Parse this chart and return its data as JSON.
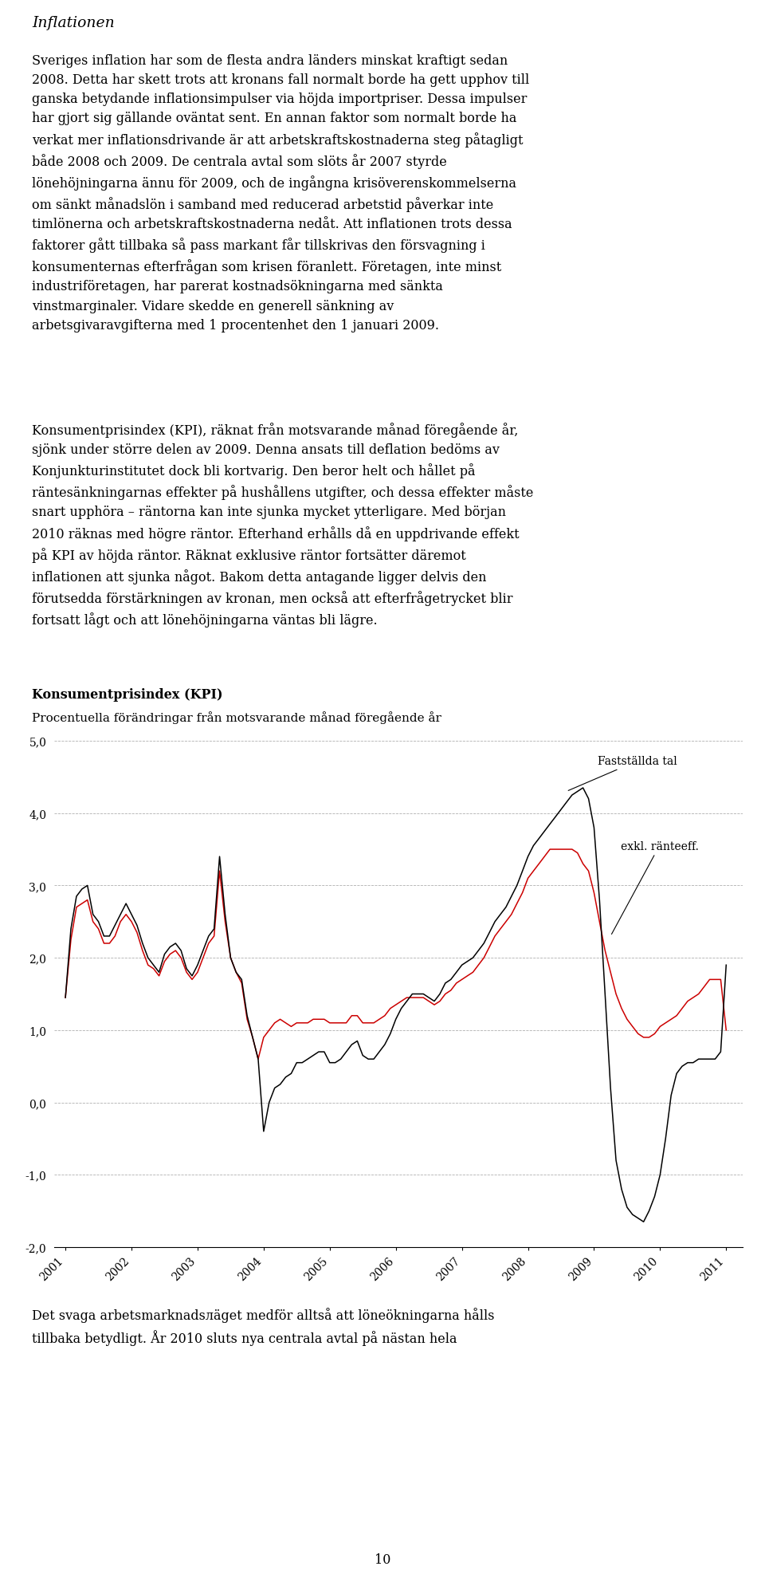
{
  "title_italic": "Inflationen",
  "para1": "Sveriges inflation har som de flesta andra länders minskat kraftigt sedan\n2008. Detta har skett trots att kronans fall normalt borde ha gett upphov till\nganska betydande inflationsimpulser via höjda importpriser. Dessa impulser\nhar gjort sig gällande oväntat sent. En annan faktor som normalt borde ha\nverkat mer inflationsdrivande är att arbetskraftskostnaderna steg påtagligt\nbåde 2008 och 2009. De centrala avtal som slöts år 2007 styrde\nlönehöjningarna ännu för 2009, och de ingångna krisöverenskommelserna\nom sänkt månadslön i samband med reducerad arbetstid påverkar inte\ntimlönerna och arbetskraftskostnaderna nedåt. Att inflationen trots dessa\nfaktorer gått tillbaka så pass markant får tillskrivas den försvagning i\nkonsumenternas efterfrågan som krisen föranlett. Företagen, inte minst\nindustriföretagen, har parerat kostnadsökningarna med sänkta\nvinstmarginaler. Vidare skedde en generell sänkning av\narbetsgivaravgifterna med 1 procentenhet den 1 januari 2009.",
  "para2": "Konsumentprisindex (KPI), räknat från motsvarande månad föregående år,\nsjönk under större delen av 2009. Denna ansats till deflation bedöms av\nKonjunkturinstitutet dock bli kortvarig. Den beror helt och hållet på\nräntesänkningarnas effekter på hushållens utgifter, och dessa effekter måste\nsnart upphöra – räntorna kan inte sjunka mycket ytterligare. Med början\n2010 räknas med högre räntor. Efterhand erhålls då en uppdrivande effekt\npå KPI av höjda räntor. Räknat exklusive räntor fortsätter däremot\ninflationen att sjunka något. Bakom detta antagande ligger delvis den\nförutsedda förstärkningen av kronan, men också att efterfrågetrycket blir\nfortsatt lågt och att lönehöjningarna väntas bli lägre.",
  "chart_title_bold": "Konsumentprisindex (KPI)",
  "chart_subtitle": "Procentuella förändringar från motsvarande månad föregående år",
  "para3": "Det svaga arbetsmarknadsлäget medför alltså att löneökningarna hålls\ntillbaka betydligt. År 2010 sluts nya centrala avtal på nästan hela",
  "page_number": "10",
  "ylim": [
    -2.0,
    5.0
  ],
  "yticks": [
    -2.0,
    -1.0,
    0.0,
    1.0,
    2.0,
    3.0,
    4.0,
    5.0
  ],
  "yticklabels": [
    "-2,0",
    "-1,0",
    "0,0",
    "1,0",
    "2,0",
    "3,0",
    "4,0",
    "5,0"
  ],
  "legend_label_black": "Fastställda tal",
  "legend_label_red": "exkl. ränteeff.",
  "black_line_color": "#000000",
  "red_line_color": "#cc0000",
  "grid_color": "#b0b0b0",
  "background_color": "#ffffff",
  "black_x": [
    2001.0,
    2001.083,
    2001.167,
    2001.25,
    2001.333,
    2001.417,
    2001.5,
    2001.583,
    2001.667,
    2001.75,
    2001.833,
    2001.917,
    2002.0,
    2002.083,
    2002.167,
    2002.25,
    2002.333,
    2002.417,
    2002.5,
    2002.583,
    2002.667,
    2002.75,
    2002.833,
    2002.917,
    2003.0,
    2003.083,
    2003.167,
    2003.25,
    2003.333,
    2003.417,
    2003.5,
    2003.583,
    2003.667,
    2003.75,
    2003.833,
    2003.917,
    2004.0,
    2004.083,
    2004.167,
    2004.25,
    2004.333,
    2004.417,
    2004.5,
    2004.583,
    2004.667,
    2004.75,
    2004.833,
    2004.917,
    2005.0,
    2005.083,
    2005.167,
    2005.25,
    2005.333,
    2005.417,
    2005.5,
    2005.583,
    2005.667,
    2005.75,
    2005.833,
    2005.917,
    2006.0,
    2006.083,
    2006.167,
    2006.25,
    2006.333,
    2006.417,
    2006.5,
    2006.583,
    2006.667,
    2006.75,
    2006.833,
    2006.917,
    2007.0,
    2007.083,
    2007.167,
    2007.25,
    2007.333,
    2007.417,
    2007.5,
    2007.583,
    2007.667,
    2007.75,
    2007.833,
    2007.917,
    2008.0,
    2008.083,
    2008.167,
    2008.25,
    2008.333,
    2008.417,
    2008.5,
    2008.583,
    2008.667,
    2008.75,
    2008.833,
    2008.917,
    2009.0,
    2009.083,
    2009.167,
    2009.25,
    2009.333,
    2009.417,
    2009.5,
    2009.583,
    2009.667,
    2009.75,
    2009.833,
    2009.917,
    2010.0,
    2010.083,
    2010.167,
    2010.25,
    2010.333,
    2010.417,
    2010.5,
    2010.583,
    2010.667,
    2010.75,
    2010.833,
    2010.917,
    2011.0
  ],
  "black_y": [
    1.45,
    2.4,
    2.85,
    2.95,
    3.0,
    2.6,
    2.5,
    2.3,
    2.3,
    2.45,
    2.6,
    2.75,
    2.6,
    2.45,
    2.2,
    2.0,
    1.9,
    1.8,
    2.05,
    2.15,
    2.2,
    2.1,
    1.85,
    1.75,
    1.9,
    2.1,
    2.3,
    2.4,
    3.4,
    2.6,
    2.0,
    1.8,
    1.7,
    1.2,
    0.9,
    0.6,
    -0.4,
    0.0,
    0.2,
    0.25,
    0.35,
    0.4,
    0.55,
    0.55,
    0.6,
    0.65,
    0.7,
    0.7,
    0.55,
    0.55,
    0.6,
    0.7,
    0.8,
    0.85,
    0.65,
    0.6,
    0.6,
    0.7,
    0.8,
    0.95,
    1.15,
    1.3,
    1.4,
    1.5,
    1.5,
    1.5,
    1.45,
    1.4,
    1.5,
    1.65,
    1.7,
    1.8,
    1.9,
    1.95,
    2.0,
    2.1,
    2.2,
    2.35,
    2.5,
    2.6,
    2.7,
    2.85,
    3.0,
    3.2,
    3.4,
    3.55,
    3.65,
    3.75,
    3.85,
    3.95,
    4.05,
    4.15,
    4.25,
    4.3,
    4.35,
    4.2,
    3.8,
    2.8,
    1.5,
    0.2,
    -0.8,
    -1.2,
    -1.45,
    -1.55,
    -1.6,
    -1.65,
    -1.5,
    -1.3,
    -1.0,
    -0.5,
    0.1,
    0.4,
    0.5,
    0.55,
    0.55,
    0.6,
    0.6,
    0.6,
    0.6,
    0.7,
    1.9
  ],
  "red_x": [
    2001.0,
    2001.083,
    2001.167,
    2001.25,
    2001.333,
    2001.417,
    2001.5,
    2001.583,
    2001.667,
    2001.75,
    2001.833,
    2001.917,
    2002.0,
    2002.083,
    2002.167,
    2002.25,
    2002.333,
    2002.417,
    2002.5,
    2002.583,
    2002.667,
    2002.75,
    2002.833,
    2002.917,
    2003.0,
    2003.083,
    2003.167,
    2003.25,
    2003.333,
    2003.417,
    2003.5,
    2003.583,
    2003.667,
    2003.75,
    2003.833,
    2003.917,
    2004.0,
    2004.083,
    2004.167,
    2004.25,
    2004.333,
    2004.417,
    2004.5,
    2004.583,
    2004.667,
    2004.75,
    2004.833,
    2004.917,
    2005.0,
    2005.083,
    2005.167,
    2005.25,
    2005.333,
    2005.417,
    2005.5,
    2005.583,
    2005.667,
    2005.75,
    2005.833,
    2005.917,
    2006.0,
    2006.083,
    2006.167,
    2006.25,
    2006.333,
    2006.417,
    2006.5,
    2006.583,
    2006.667,
    2006.75,
    2006.833,
    2006.917,
    2007.0,
    2007.083,
    2007.167,
    2007.25,
    2007.333,
    2007.417,
    2007.5,
    2007.583,
    2007.667,
    2007.75,
    2007.833,
    2007.917,
    2008.0,
    2008.083,
    2008.167,
    2008.25,
    2008.333,
    2008.417,
    2008.5,
    2008.583,
    2008.667,
    2008.75,
    2008.833,
    2008.917,
    2009.0,
    2009.083,
    2009.167,
    2009.25,
    2009.333,
    2009.417,
    2009.5,
    2009.583,
    2009.667,
    2009.75,
    2009.833,
    2009.917,
    2010.0,
    2010.083,
    2010.167,
    2010.25,
    2010.333,
    2010.417,
    2010.5,
    2010.583,
    2010.667,
    2010.75,
    2010.833,
    2010.917,
    2011.0
  ],
  "red_y": [
    1.45,
    2.25,
    2.7,
    2.75,
    2.8,
    2.5,
    2.4,
    2.2,
    2.2,
    2.3,
    2.5,
    2.6,
    2.5,
    2.35,
    2.1,
    1.9,
    1.85,
    1.75,
    1.95,
    2.05,
    2.1,
    2.0,
    1.8,
    1.7,
    1.8,
    2.0,
    2.2,
    2.3,
    3.2,
    2.5,
    2.0,
    1.8,
    1.65,
    1.15,
    0.9,
    0.6,
    0.9,
    1.0,
    1.1,
    1.15,
    1.1,
    1.05,
    1.1,
    1.1,
    1.1,
    1.15,
    1.15,
    1.15,
    1.1,
    1.1,
    1.1,
    1.1,
    1.2,
    1.2,
    1.1,
    1.1,
    1.1,
    1.15,
    1.2,
    1.3,
    1.35,
    1.4,
    1.45,
    1.45,
    1.45,
    1.45,
    1.4,
    1.35,
    1.4,
    1.5,
    1.55,
    1.65,
    1.7,
    1.75,
    1.8,
    1.9,
    2.0,
    2.15,
    2.3,
    2.4,
    2.5,
    2.6,
    2.75,
    2.9,
    3.1,
    3.2,
    3.3,
    3.4,
    3.5,
    3.5,
    3.5,
    3.5,
    3.5,
    3.45,
    3.3,
    3.2,
    2.9,
    2.5,
    2.1,
    1.8,
    1.5,
    1.3,
    1.15,
    1.05,
    0.95,
    0.9,
    0.9,
    0.95,
    1.05,
    1.1,
    1.15,
    1.2,
    1.3,
    1.4,
    1.45,
    1.5,
    1.6,
    1.7,
    1.7,
    1.7,
    1.0
  ],
  "text_fontsize": 11.5,
  "title_fontsize": 13.5,
  "chart_title_fontsize": 11.5,
  "page_fontsize": 11.5
}
